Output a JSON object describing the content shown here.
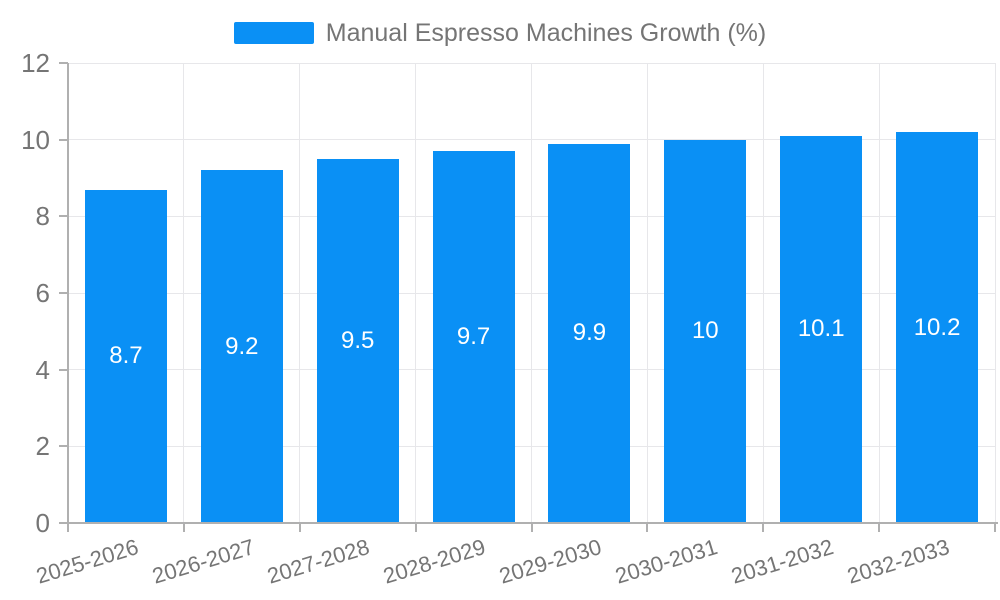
{
  "legend": {
    "label": "Manual Espresso Machines Growth (%)"
  },
  "chart_data": {
    "type": "bar",
    "title": "",
    "series_name": "Manual Espresso Machines Growth (%)",
    "categories": [
      "2025-2026",
      "2026-2027",
      "2027-2028",
      "2028-2029",
      "2029-2030",
      "2030-2031",
      "2031-2032",
      "2032-2033"
    ],
    "values": [
      8.7,
      9.2,
      9.5,
      9.7,
      9.9,
      10,
      10.1,
      10.2
    ],
    "bar_value_labels": [
      "8.7",
      "9.2",
      "9.5",
      "9.7",
      "9.9",
      "10",
      "10.1",
      "10.2"
    ],
    "xlabel": "",
    "ylabel": "",
    "ylim": [
      0,
      12
    ],
    "y_ticks": [
      0,
      2,
      4,
      6,
      8,
      10,
      12
    ],
    "grid": true,
    "x_label_rotation_deg": -17,
    "legend_position": "top-center",
    "colors": {
      "bar": "#0A90F5",
      "text": "#757575",
      "axis": "#B0B0B0",
      "grid": "#E7E7EA",
      "bar_label": "#FFFFFF",
      "background": "#FFFFFF"
    }
  }
}
